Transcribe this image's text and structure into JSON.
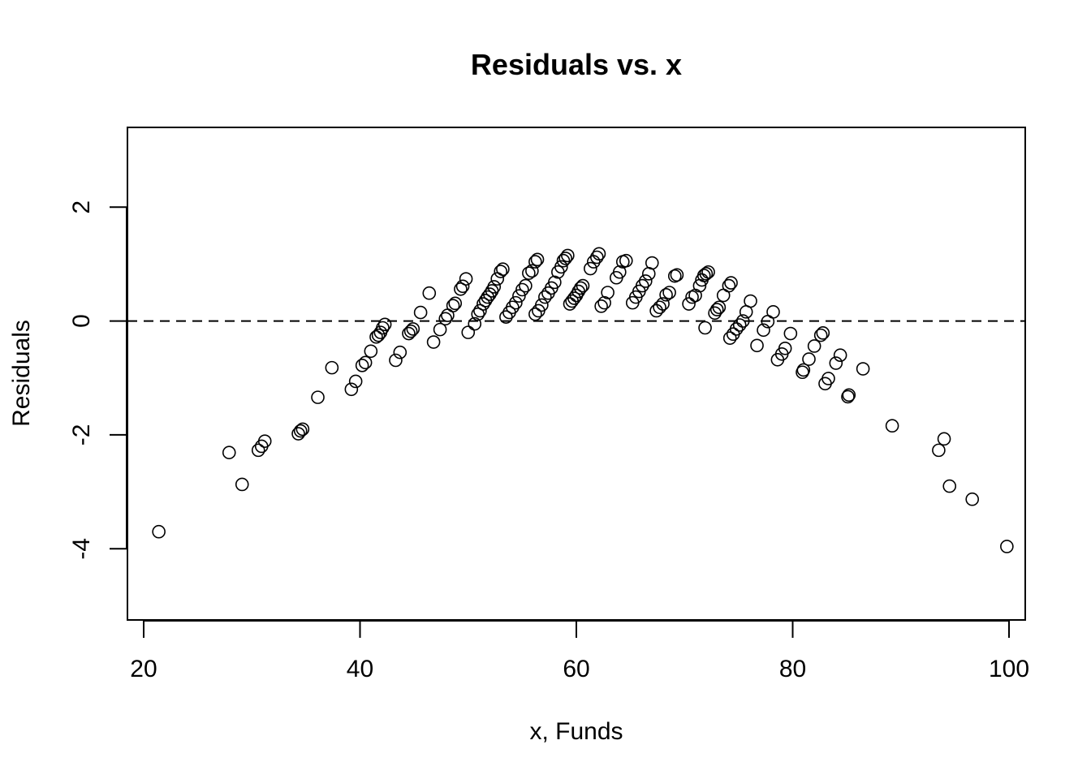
{
  "chart_data": {
    "type": "scatter",
    "title": "Residuals vs. x",
    "xlabel": "x, Funds",
    "ylabel": "Residuals",
    "xlim": [
      18.5,
      101.5
    ],
    "ylim": [
      -5.25,
      3.4
    ],
    "x_ticks": [
      20,
      40,
      60,
      80,
      100
    ],
    "x_tick_labels": [
      "20",
      "40",
      "60",
      "80",
      "100"
    ],
    "y_ticks": [
      -4,
      -2,
      0,
      2
    ],
    "y_tick_labels": [
      "-4",
      "-2",
      "0",
      "2"
    ],
    "grid": false,
    "legend": "none",
    "reference_line": {
      "y": 0,
      "style": "dashed"
    },
    "marker": "open-circle",
    "points": [
      [
        21.4,
        -3.7
      ],
      [
        27.9,
        -2.31
      ],
      [
        29.1,
        -2.87
      ],
      [
        30.6,
        -2.27
      ],
      [
        30.9,
        -2.2
      ],
      [
        31.2,
        -2.11
      ],
      [
        34.3,
        -1.98
      ],
      [
        34.5,
        -1.93
      ],
      [
        34.7,
        -1.9
      ],
      [
        36.1,
        -1.34
      ],
      [
        37.4,
        -0.82
      ],
      [
        39.2,
        -1.2
      ],
      [
        39.6,
        -1.06
      ],
      [
        40.2,
        -0.78
      ],
      [
        40.5,
        -0.73
      ],
      [
        41.0,
        -0.53
      ],
      [
        41.5,
        -0.28
      ],
      [
        41.7,
        -0.25
      ],
      [
        41.9,
        -0.2
      ],
      [
        42.1,
        -0.12
      ],
      [
        42.3,
        -0.06
      ],
      [
        43.3,
        -0.69
      ],
      [
        43.7,
        -0.55
      ],
      [
        44.5,
        -0.22
      ],
      [
        44.7,
        -0.18
      ],
      [
        44.9,
        -0.14
      ],
      [
        45.6,
        0.15
      ],
      [
        46.4,
        0.49
      ],
      [
        46.8,
        -0.37
      ],
      [
        47.4,
        -0.15
      ],
      [
        47.9,
        0.04
      ],
      [
        48.1,
        0.1
      ],
      [
        48.6,
        0.27
      ],
      [
        48.8,
        0.31
      ],
      [
        49.3,
        0.56
      ],
      [
        49.5,
        0.61
      ],
      [
        49.8,
        0.74
      ],
      [
        50.0,
        -0.2
      ],
      [
        50.6,
        -0.05
      ],
      [
        50.9,
        0.12
      ],
      [
        51.1,
        0.18
      ],
      [
        51.4,
        0.3
      ],
      [
        51.6,
        0.36
      ],
      [
        51.8,
        0.42
      ],
      [
        52.0,
        0.47
      ],
      [
        52.2,
        0.53
      ],
      [
        52.4,
        0.6
      ],
      [
        52.7,
        0.74
      ],
      [
        53.0,
        0.87
      ],
      [
        53.2,
        0.91
      ],
      [
        53.5,
        0.07
      ],
      [
        53.8,
        0.15
      ],
      [
        54.1,
        0.24
      ],
      [
        54.4,
        0.32
      ],
      [
        54.7,
        0.44
      ],
      [
        55.0,
        0.55
      ],
      [
        55.3,
        0.62
      ],
      [
        55.6,
        0.84
      ],
      [
        55.9,
        0.88
      ],
      [
        56.2,
        1.04
      ],
      [
        56.4,
        1.08
      ],
      [
        56.2,
        0.12
      ],
      [
        56.5,
        0.18
      ],
      [
        56.8,
        0.28
      ],
      [
        57.1,
        0.42
      ],
      [
        57.4,
        0.49
      ],
      [
        57.7,
        0.58
      ],
      [
        58.0,
        0.68
      ],
      [
        58.3,
        0.86
      ],
      [
        58.6,
        0.95
      ],
      [
        58.8,
        1.06
      ],
      [
        59.0,
        1.1
      ],
      [
        59.2,
        1.15
      ],
      [
        59.4,
        0.3
      ],
      [
        59.6,
        0.35
      ],
      [
        59.8,
        0.4
      ],
      [
        60.0,
        0.45
      ],
      [
        60.2,
        0.52
      ],
      [
        60.4,
        0.58
      ],
      [
        60.6,
        0.62
      ],
      [
        61.3,
        0.92
      ],
      [
        61.6,
        1.04
      ],
      [
        61.9,
        1.12
      ],
      [
        62.1,
        1.18
      ],
      [
        62.3,
        0.26
      ],
      [
        62.6,
        0.32
      ],
      [
        62.9,
        0.5
      ],
      [
        63.7,
        0.76
      ],
      [
        64.0,
        0.86
      ],
      [
        64.3,
        1.04
      ],
      [
        64.6,
        1.06
      ],
      [
        65.2,
        0.32
      ],
      [
        65.5,
        0.42
      ],
      [
        65.8,
        0.52
      ],
      [
        66.1,
        0.62
      ],
      [
        66.4,
        0.7
      ],
      [
        66.7,
        0.83
      ],
      [
        67.0,
        1.02
      ],
      [
        67.4,
        0.18
      ],
      [
        67.7,
        0.24
      ],
      [
        68.0,
        0.3
      ],
      [
        68.3,
        0.46
      ],
      [
        68.6,
        0.5
      ],
      [
        69.1,
        0.79
      ],
      [
        69.3,
        0.81
      ],
      [
        70.4,
        0.3
      ],
      [
        70.7,
        0.42
      ],
      [
        71.0,
        0.45
      ],
      [
        71.4,
        0.62
      ],
      [
        71.6,
        0.72
      ],
      [
        71.8,
        0.8
      ],
      [
        72.0,
        0.83
      ],
      [
        72.2,
        0.86
      ],
      [
        71.9,
        -0.12
      ],
      [
        72.8,
        0.14
      ],
      [
        73.0,
        0.2
      ],
      [
        73.2,
        0.24
      ],
      [
        73.6,
        0.45
      ],
      [
        74.1,
        0.62
      ],
      [
        74.3,
        0.67
      ],
      [
        74.2,
        -0.3
      ],
      [
        74.5,
        -0.23
      ],
      [
        74.8,
        -0.14
      ],
      [
        75.1,
        -0.07
      ],
      [
        75.4,
        0.0
      ],
      [
        75.7,
        0.16
      ],
      [
        76.1,
        0.35
      ],
      [
        76.7,
        -0.43
      ],
      [
        77.3,
        -0.16
      ],
      [
        77.7,
        -0.01
      ],
      [
        78.2,
        0.16
      ],
      [
        78.6,
        -0.68
      ],
      [
        79.0,
        -0.58
      ],
      [
        79.3,
        -0.48
      ],
      [
        79.8,
        -0.22
      ],
      [
        80.9,
        -0.9
      ],
      [
        81.0,
        -0.86
      ],
      [
        81.5,
        -0.67
      ],
      [
        82.0,
        -0.44
      ],
      [
        82.6,
        -0.25
      ],
      [
        82.8,
        -0.21
      ],
      [
        83.0,
        -1.1
      ],
      [
        83.3,
        -1.01
      ],
      [
        84.0,
        -0.74
      ],
      [
        84.4,
        -0.6
      ],
      [
        85.1,
        -1.33
      ],
      [
        85.2,
        -1.3
      ],
      [
        86.5,
        -0.84
      ],
      [
        89.2,
        -1.84
      ],
      [
        93.5,
        -2.27
      ],
      [
        94.0,
        -2.07
      ],
      [
        94.5,
        -2.9
      ],
      [
        96.6,
        -3.13
      ],
      [
        99.8,
        -3.96
      ]
    ]
  }
}
